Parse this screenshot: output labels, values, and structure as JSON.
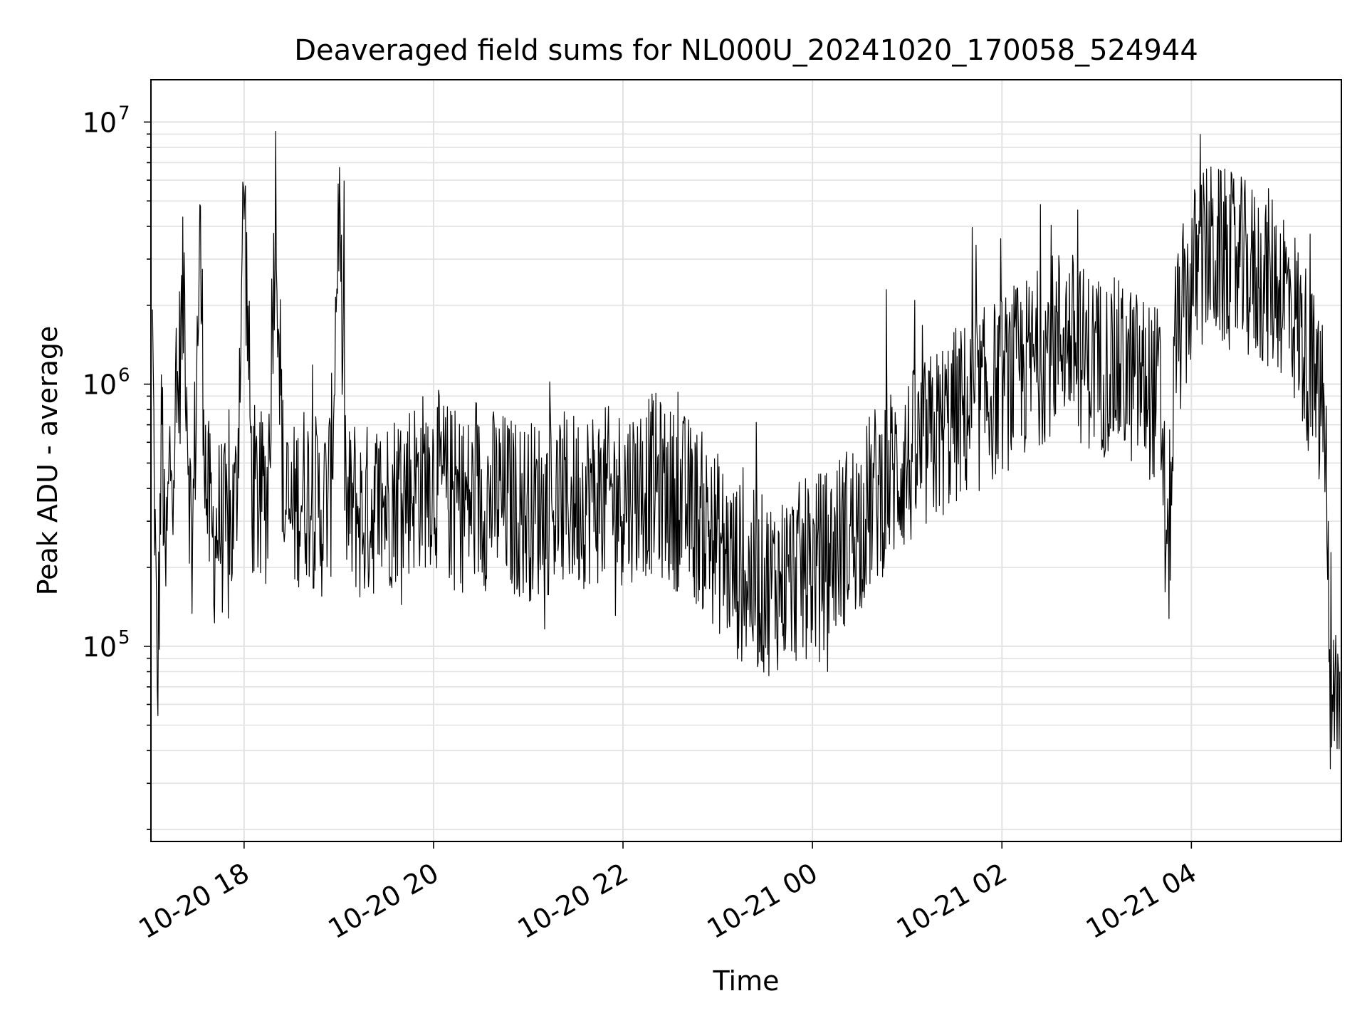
{
  "chart_data": {
    "type": "line",
    "title": "Deaveraged field sums for NL000U_20241020_170058_524944",
    "xlabel": "Time",
    "ylabel": "Peak ADU - average",
    "yscale": "log",
    "ylim": [
      18000,
      14500000
    ],
    "xlim": [
      "2024-10-20 17:01",
      "2024-10-21 05:35"
    ],
    "grid": true,
    "line_color": "#000000",
    "x_ticks": [
      "10-20 18",
      "10-20 20",
      "10-20 22",
      "10-21 00",
      "10-21 02",
      "10-21 04"
    ],
    "y_ticks": [
      {
        "base": "10",
        "exp": "5"
      },
      {
        "base": "10",
        "exp": "6"
      },
      {
        "base": "10",
        "exp": "7"
      }
    ],
    "series": [
      {
        "x": [
          "2024-10-20 17:02",
          "2024-10-20 17:05",
          "2024-10-20 17:08",
          "2024-10-20 17:10",
          "2024-10-20 17:13",
          "2024-10-20 17:17",
          "2024-10-20 17:22",
          "2024-10-20 17:27",
          "2024-10-20 17:32",
          "2024-10-20 17:36",
          "2024-10-20 17:40",
          "2024-10-20 17:45",
          "2024-10-20 17:50",
          "2024-10-20 17:55",
          "2024-10-20 18:00",
          "2024-10-20 18:05",
          "2024-10-20 18:10",
          "2024-10-20 18:15",
          "2024-10-20 18:20",
          "2024-10-20 18:25",
          "2024-10-20 18:30",
          "2024-10-20 18:35",
          "2024-10-20 18:40",
          "2024-10-20 18:45",
          "2024-10-20 18:50",
          "2024-10-20 18:55",
          "2024-10-20 19:00",
          "2024-10-20 19:05",
          "2024-10-20 19:10",
          "2024-10-20 19:15",
          "2024-10-20 19:20",
          "2024-10-20 19:30",
          "2024-10-20 19:40",
          "2024-10-20 19:50",
          "2024-10-20 20:00",
          "2024-10-20 20:10",
          "2024-10-20 20:20",
          "2024-10-20 20:30",
          "2024-10-20 20:40",
          "2024-10-20 20:50",
          "2024-10-20 21:00",
          "2024-10-20 21:10",
          "2024-10-20 21:20",
          "2024-10-20 21:30",
          "2024-10-20 21:40",
          "2024-10-20 21:50",
          "2024-10-20 22:00",
          "2024-10-20 22:10",
          "2024-10-20 22:20",
          "2024-10-20 22:30",
          "2024-10-20 22:40",
          "2024-10-20 22:50",
          "2024-10-20 23:00",
          "2024-10-20 23:10",
          "2024-10-20 23:20",
          "2024-10-20 23:30",
          "2024-10-20 23:40",
          "2024-10-20 23:50",
          "2024-10-21 00:00",
          "2024-10-21 00:10",
          "2024-10-21 00:20",
          "2024-10-21 00:30",
          "2024-10-21 00:40",
          "2024-10-21 00:50",
          "2024-10-21 01:00",
          "2024-10-21 01:10",
          "2024-10-21 01:20",
          "2024-10-21 01:30",
          "2024-10-21 01:40",
          "2024-10-21 01:50",
          "2024-10-21 02:00",
          "2024-10-21 02:10",
          "2024-10-21 02:20",
          "2024-10-21 02:30",
          "2024-10-21 02:40",
          "2024-10-21 02:50",
          "2024-10-21 03:00",
          "2024-10-21 03:10",
          "2024-10-21 03:20",
          "2024-10-21 03:30",
          "2024-10-21 03:40",
          "2024-10-21 03:45",
          "2024-10-21 03:50",
          "2024-10-21 04:00",
          "2024-10-21 04:10",
          "2024-10-21 04:20",
          "2024-10-21 04:30",
          "2024-10-21 04:40",
          "2024-10-21 04:50",
          "2024-10-21 05:00",
          "2024-10-21 05:10",
          "2024-10-21 05:20",
          "2024-10-21 05:25",
          "2024-10-21 05:28",
          "2024-10-21 05:31",
          "2024-10-21 05:34"
        ],
        "y": [
          1500000,
          60000,
          800000,
          160000,
          500000,
          700000,
          2400000,
          200000,
          3500000,
          400000,
          250000,
          300000,
          250000,
          350000,
          5700000,
          400000,
          350000,
          380000,
          5500000,
          350000,
          300000,
          380000,
          400000,
          350000,
          330000,
          400000,
          5000000,
          300000,
          350000,
          300000,
          340000,
          350000,
          400000,
          420000,
          450000,
          380000,
          350000,
          360000,
          370000,
          340000,
          330000,
          340000,
          350000,
          360000,
          380000,
          370000,
          380000,
          400000,
          420000,
          370000,
          350000,
          300000,
          250000,
          200000,
          180000,
          170000,
          180000,
          190000,
          200000,
          220000,
          260000,
          300000,
          380000,
          450000,
          500000,
          550000,
          650000,
          750000,
          800000,
          900000,
          1000000,
          1100000,
          1200000,
          1400000,
          1600000,
          1300000,
          1200000,
          1150000,
          1100000,
          1000000,
          900000,
          180000,
          1400000,
          2500000,
          3200000,
          3000000,
          2800000,
          2600000,
          2500000,
          2300000,
          1500000,
          900000,
          700000,
          48000,
          60000,
          80000
        ]
      }
    ]
  }
}
